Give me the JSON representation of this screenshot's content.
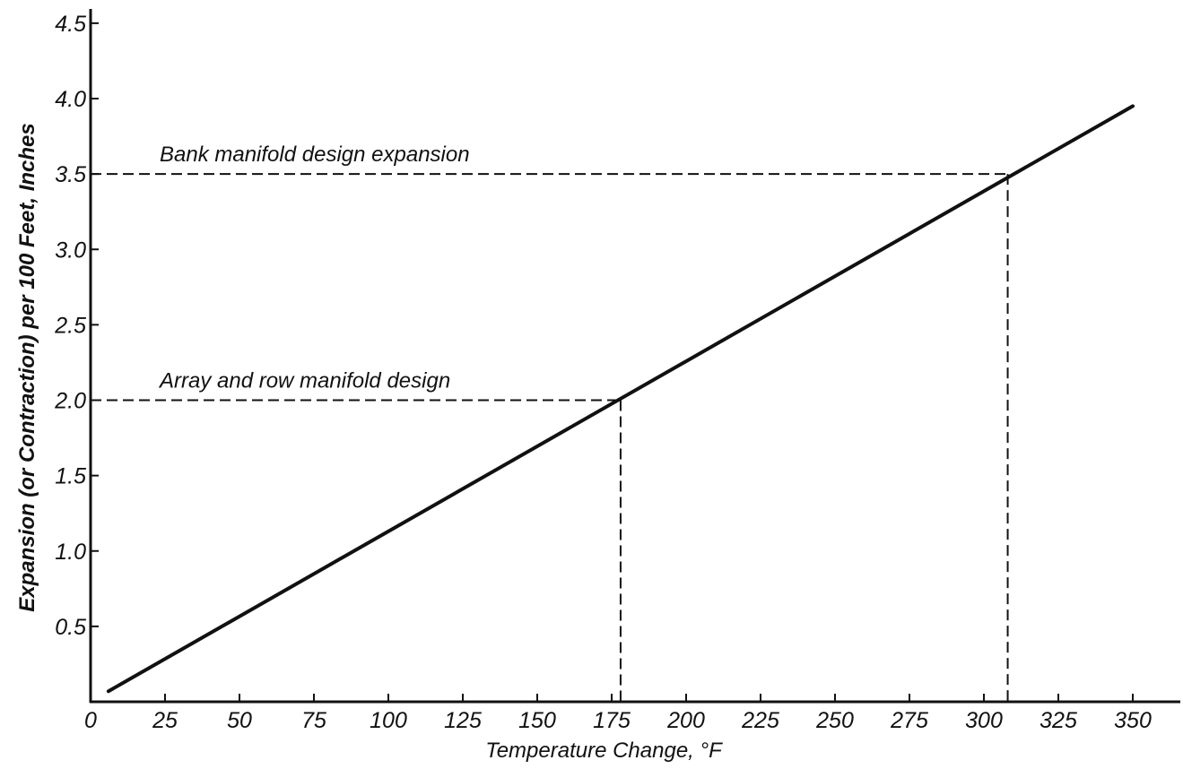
{
  "chart_data": {
    "type": "line",
    "title": "",
    "xlabel": "Temperature Change, °F",
    "ylabel": "Expansion (or Contraction) per 100 Feet, Inches",
    "xlim": [
      0,
      360
    ],
    "ylim": [
      0,
      4.6
    ],
    "x_ticks": [
      0,
      25,
      50,
      75,
      100,
      125,
      150,
      175,
      200,
      225,
      250,
      275,
      300,
      325,
      350
    ],
    "x_tick_labels": [
      "0",
      "25",
      "50",
      "75",
      "100",
      "125",
      "150",
      "175",
      "200",
      "225",
      "250",
      "275",
      "300",
      "325",
      "350"
    ],
    "y_ticks": [
      0.5,
      1.0,
      1.5,
      2.0,
      2.5,
      3.0,
      3.5,
      4.0,
      4.5
    ],
    "y_tick_labels": [
      "0.5",
      "1.0",
      "1.5",
      "2.0",
      "2.5",
      "3.0",
      "3.5",
      "4.0",
      "4.5"
    ],
    "grid": false,
    "series": [
      {
        "x": [
          6,
          350
        ],
        "y": [
          0.07,
          3.95
        ]
      }
    ],
    "annotations": [
      {
        "text": "Array and row manifold design",
        "x": 178,
        "y": 2.0
      },
      {
        "text": "Bank manifold design expansion",
        "x": 308,
        "y": 3.5
      }
    ],
    "colors": {
      "line": "#111111",
      "axis": "#111111",
      "guide": "#111111"
    }
  }
}
